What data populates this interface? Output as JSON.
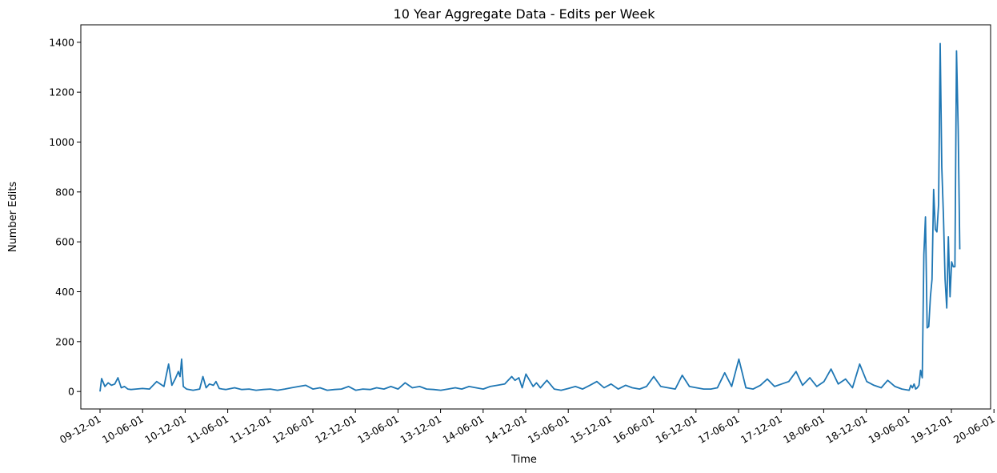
{
  "chart_data": {
    "type": "line",
    "title": "10 Year Aggregate Data - Edits per Week",
    "xlabel": "Time",
    "ylabel": "Number Edits",
    "x_tick_labels": [
      "09-12-01",
      "10-06-01",
      "10-12-01",
      "11-06-01",
      "11-12-01",
      "12-06-01",
      "12-12-01",
      "13-06-01",
      "13-12-01",
      "14-06-01",
      "14-12-01",
      "15-06-01",
      "15-12-01",
      "16-06-01",
      "16-12-01",
      "17-06-01",
      "17-12-01",
      "18-06-01",
      "18-12-01",
      "19-06-01",
      "19-12-01",
      "20-06-01"
    ],
    "y_ticks": [
      0,
      200,
      400,
      600,
      800,
      1000,
      1200,
      1400
    ],
    "ylim": [
      -70,
      1470
    ],
    "grid": false,
    "color": "#1f77b4",
    "series": [
      {
        "x": [
          "2009-12-01",
          "2009-12-08",
          "2009-12-22",
          "2010-01-05",
          "2010-01-19",
          "2010-02-02",
          "2010-02-16",
          "2010-03-02",
          "2010-03-16",
          "2010-03-30",
          "2010-04-13",
          "2010-05-04",
          "2010-06-01",
          "2010-07-01",
          "2010-08-01",
          "2010-09-01",
          "2010-09-21",
          "2010-10-05",
          "2010-10-19",
          "2010-11-02",
          "2010-11-09",
          "2010-11-16",
          "2010-11-23",
          "2010-12-07",
          "2011-01-04",
          "2011-02-01",
          "2011-02-15",
          "2011-03-01",
          "2011-03-15",
          "2011-04-01",
          "2011-04-12",
          "2011-04-26",
          "2011-05-10",
          "2011-05-24",
          "2011-07-01",
          "2011-08-01",
          "2011-09-01",
          "2011-10-01",
          "2011-11-01",
          "2011-12-01",
          "2012-01-01",
          "2012-02-01",
          "2012-03-01",
          "2012-04-01",
          "2012-05-01",
          "2012-06-01",
          "2012-07-01",
          "2012-08-01",
          "2012-09-01",
          "2012-10-01",
          "2012-11-01",
          "2012-12-01",
          "2013-01-01",
          "2013-02-01",
          "2013-03-01",
          "2013-04-01",
          "2013-05-01",
          "2013-06-01",
          "2013-07-01",
          "2013-08-01",
          "2013-09-01",
          "2013-10-01",
          "2013-11-01",
          "2013-12-01",
          "2014-01-01",
          "2014-02-01",
          "2014-03-01",
          "2014-04-01",
          "2014-05-01",
          "2014-06-01",
          "2014-07-01",
          "2014-08-01",
          "2014-09-01",
          "2014-10-01",
          "2014-10-15",
          "2014-11-01",
          "2014-11-15",
          "2014-12-01",
          "2015-01-01",
          "2015-01-15",
          "2015-02-01",
          "2015-03-01",
          "2015-04-01",
          "2015-05-01",
          "2015-06-01",
          "2015-07-01",
          "2015-08-01",
          "2015-09-01",
          "2015-10-01",
          "2015-11-01",
          "2015-12-01",
          "2016-01-01",
          "2016-02-01",
          "2016-03-01",
          "2016-04-01",
          "2016-05-01",
          "2016-06-01",
          "2016-07-01",
          "2016-08-01",
          "2016-09-01",
          "2016-10-01",
          "2016-11-01",
          "2016-12-01",
          "2017-01-01",
          "2017-02-01",
          "2017-03-01",
          "2017-04-01",
          "2017-05-01",
          "2017-06-01",
          "2017-07-01",
          "2017-08-01",
          "2017-09-01",
          "2017-10-01",
          "2017-11-01",
          "2017-12-01",
          "2018-01-01",
          "2018-02-01",
          "2018-03-01",
          "2018-04-01",
          "2018-05-01",
          "2018-06-01",
          "2018-07-01",
          "2018-08-01",
          "2018-09-01",
          "2018-10-01",
          "2018-11-01",
          "2018-12-01",
          "2019-01-01",
          "2019-02-01",
          "2019-03-01",
          "2019-04-01",
          "2019-05-01",
          "2019-06-01",
          "2019-06-08",
          "2019-06-15",
          "2019-06-22",
          "2019-06-29",
          "2019-07-06",
          "2019-07-13",
          "2019-07-20",
          "2019-07-27",
          "2019-08-03",
          "2019-08-10",
          "2019-08-17",
          "2019-08-24",
          "2019-08-31",
          "2019-09-07",
          "2019-09-14",
          "2019-09-21",
          "2019-09-28",
          "2019-10-05",
          "2019-10-12",
          "2019-10-19",
          "2019-10-26",
          "2019-11-02",
          "2019-11-09",
          "2019-11-16",
          "2019-11-23",
          "2019-11-30",
          "2019-12-07",
          "2019-12-14",
          "2019-12-21",
          "2019-12-28",
          "2020-01-04"
        ],
        "y": [
          0,
          52,
          20,
          35,
          25,
          30,
          55,
          15,
          20,
          10,
          8,
          10,
          12,
          10,
          40,
          20,
          110,
          25,
          50,
          80,
          60,
          130,
          20,
          10,
          5,
          10,
          60,
          15,
          30,
          25,
          40,
          12,
          10,
          8,
          15,
          8,
          10,
          5,
          8,
          10,
          5,
          10,
          15,
          20,
          25,
          10,
          15,
          5,
          8,
          10,
          20,
          5,
          10,
          8,
          15,
          10,
          20,
          10,
          35,
          15,
          20,
          10,
          8,
          5,
          10,
          15,
          10,
          20,
          15,
          10,
          20,
          25,
          30,
          60,
          45,
          55,
          15,
          70,
          20,
          35,
          15,
          45,
          10,
          5,
          12,
          20,
          10,
          25,
          40,
          15,
          30,
          10,
          25,
          15,
          10,
          20,
          60,
          20,
          15,
          10,
          65,
          20,
          15,
          10,
          10,
          15,
          75,
          20,
          130,
          15,
          10,
          25,
          50,
          20,
          30,
          40,
          80,
          25,
          55,
          20,
          40,
          90,
          30,
          50,
          15,
          110,
          40,
          25,
          15,
          45,
          20,
          10,
          5,
          25,
          15,
          30,
          10,
          15,
          25,
          85,
          55,
          550,
          700,
          255,
          260,
          380,
          450,
          810,
          650,
          640,
          750,
          1395,
          900,
          700,
          450,
          335,
          620,
          380,
          520,
          500,
          500,
          1365,
          1050,
          570
        ]
      }
    ]
  }
}
